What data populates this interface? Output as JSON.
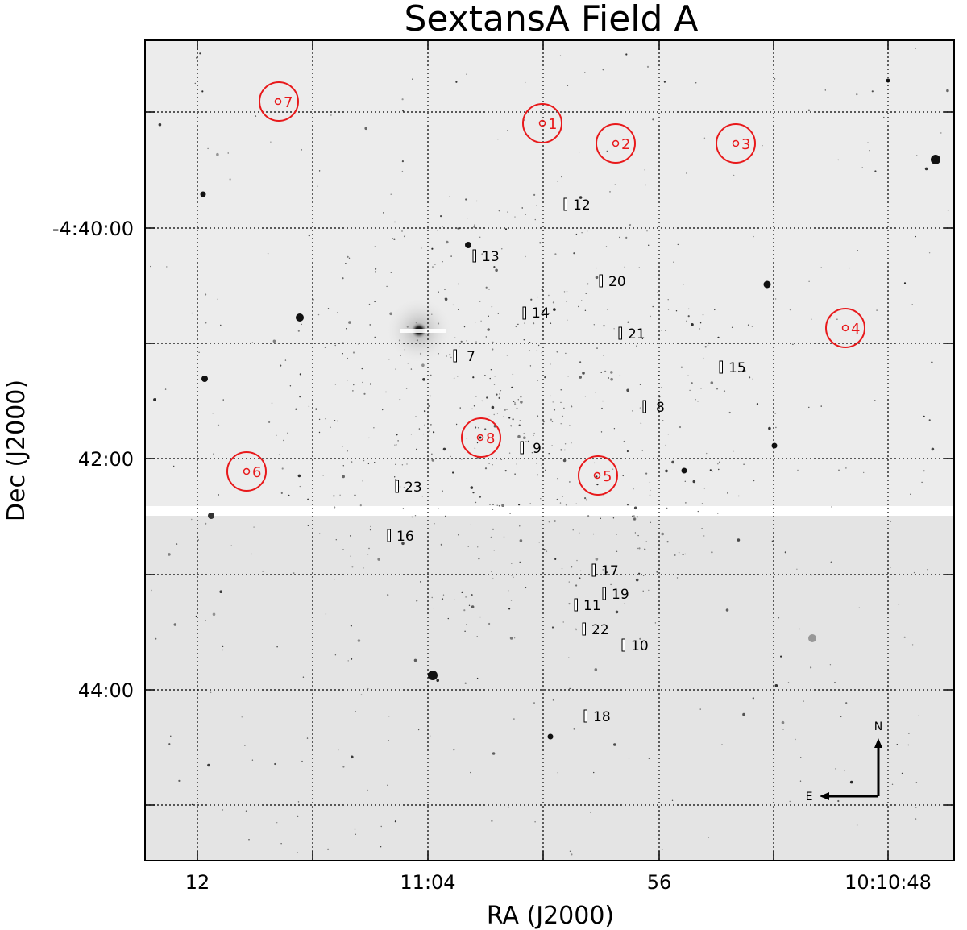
{
  "title": "SextansA Field A",
  "x_axis": {
    "label": "RA (J2000)",
    "ticks": [
      "12",
      "11:04",
      "56",
      "10:10:48"
    ]
  },
  "y_axis": {
    "label": "Dec (J2000)",
    "ticks": [
      "-4:40:00",
      "42:00",
      "44:00"
    ]
  },
  "grid": "dotted",
  "circled_targets": [
    "7",
    "1",
    "2",
    "3",
    "4",
    "8",
    "6",
    "5"
  ],
  "slit_labels": [
    "12",
    "13",
    "20",
    "14",
    "21",
    "7",
    "15",
    "8",
    "9",
    "23",
    "16",
    "17",
    "19",
    "11",
    "22",
    "10",
    "18"
  ],
  "compass": {
    "north": "N",
    "east": "E"
  },
  "colors": {
    "targets": "#e8191b",
    "grid": "#000000",
    "background": "#ececec"
  }
}
